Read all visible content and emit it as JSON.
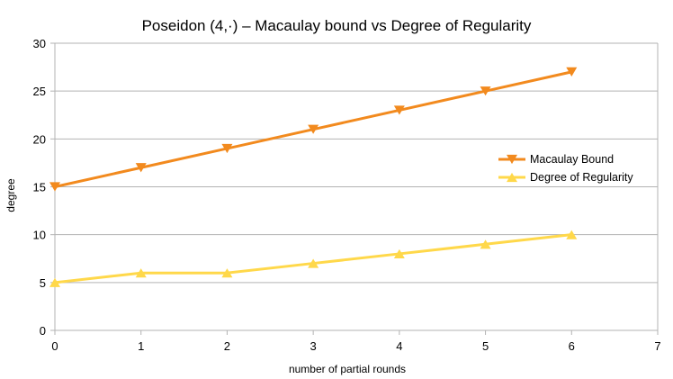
{
  "chart_data": {
    "type": "line",
    "title": "Poseidon (4,·) – Macaulay bound vs Degree of Regularity",
    "xlabel": "number of partial rounds",
    "ylabel": "degree",
    "xlim": [
      0,
      7
    ],
    "ylim": [
      0,
      30
    ],
    "x_ticks": [
      0,
      1,
      2,
      3,
      4,
      5,
      6,
      7
    ],
    "y_ticks": [
      0,
      5,
      10,
      15,
      20,
      25,
      30
    ],
    "grid": "horizontal",
    "legend_position": "right",
    "x": [
      0,
      1,
      2,
      3,
      4,
      5,
      6
    ],
    "series": [
      {
        "name": "Macaulay Bound",
        "values": [
          15,
          17,
          19,
          21,
          23,
          25,
          27
        ],
        "color": "#f28a1e",
        "marker": "triangle-down"
      },
      {
        "name": "Degree of Regularity",
        "values": [
          5,
          6,
          6,
          7,
          8,
          9,
          10
        ],
        "color": "#ffd84a",
        "marker": "triangle-up"
      }
    ]
  }
}
